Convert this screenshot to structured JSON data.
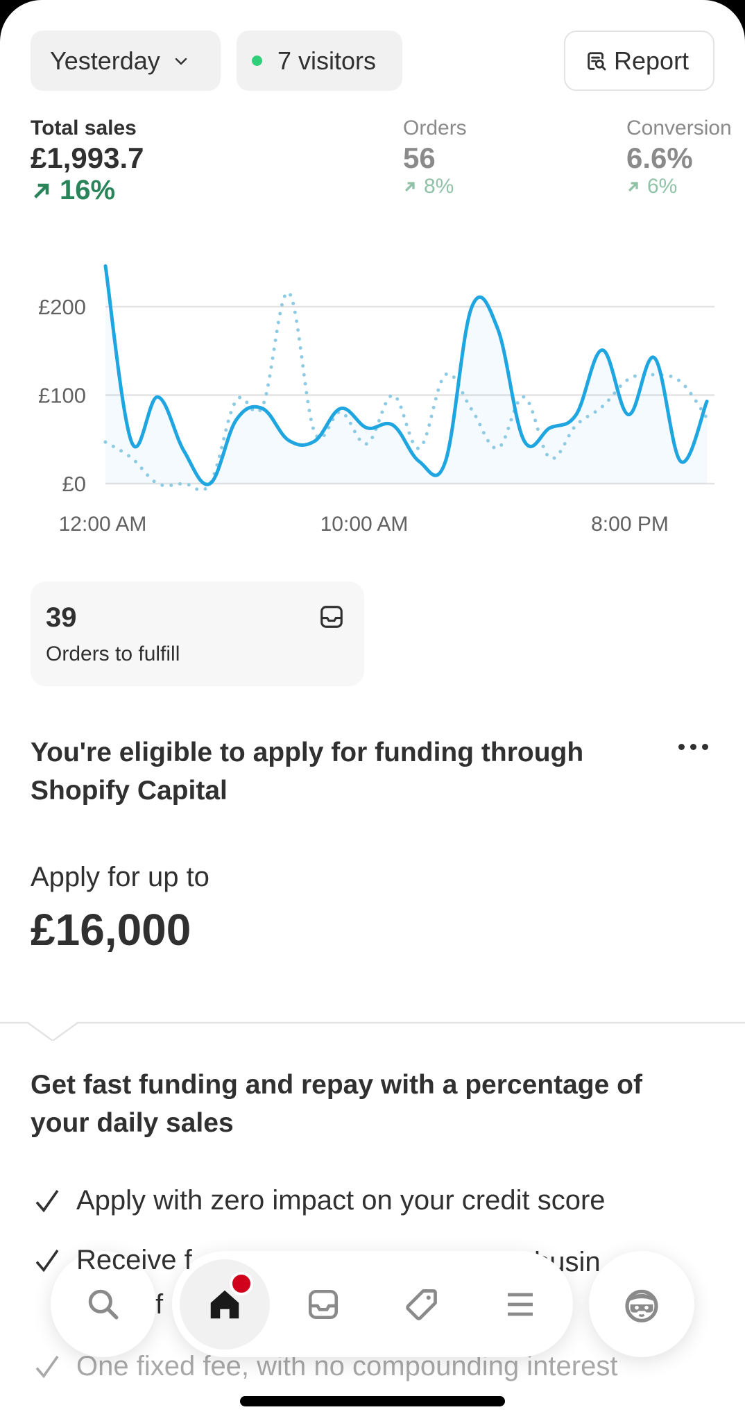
{
  "header": {
    "date_filter": "Yesterday",
    "visitors": "7 visitors",
    "visitors_dot_color": "#2fd07a",
    "report_label": "Report"
  },
  "metrics": [
    {
      "label": "Total sales",
      "value": "£1,993.7",
      "delta": "16%",
      "trend": "up"
    },
    {
      "label": "Orders",
      "value": "56",
      "delta": "8%",
      "trend": "up"
    },
    {
      "label": "Conversion",
      "value": "6.6%",
      "delta": "6%",
      "trend": "up"
    }
  ],
  "chart_data": {
    "type": "line",
    "x": [
      0,
      1,
      2,
      3,
      4,
      5,
      6,
      7,
      8,
      9,
      10,
      11,
      12,
      13,
      14,
      15,
      16,
      17,
      18,
      19,
      20,
      21,
      22,
      23
    ],
    "x_tick_labels": [
      "12:00 AM",
      "10:00 AM",
      "8:00 PM"
    ],
    "x_tick_values": [
      0,
      10,
      20
    ],
    "y_tick_labels": [
      "£0",
      "£100",
      "£200"
    ],
    "y_tick_values": [
      0,
      100,
      200
    ],
    "ylim": [
      0,
      250
    ],
    "grid": true,
    "series": [
      {
        "style": "solid",
        "color": "#1fa6e0",
        "values": [
          246,
          47,
          98,
          37,
          0,
          72,
          85,
          49,
          48,
          85,
          63,
          66,
          25,
          25,
          199,
          175,
          49,
          63,
          78,
          151,
          78,
          142,
          25,
          93
        ]
      },
      {
        "style": "dotted",
        "color": "#8ccbe3",
        "values": [
          47,
          29,
          0,
          0,
          0,
          94,
          87,
          216,
          58,
          81,
          45,
          100,
          40,
          123,
          84,
          40,
          98,
          29,
          66,
          87,
          118,
          123,
          115,
          74
        ]
      }
    ]
  },
  "fulfill_card": {
    "count": "39",
    "label": "Orders to fulfill"
  },
  "capital": {
    "heading_line1": "You're eligible to apply for funding through",
    "heading_line2": "Shopify Capital",
    "apply_label": "Apply for up to",
    "amount": "£16,000",
    "subheading_line1": "Get fast funding and repay with a percentage of",
    "subheading_line2": "your daily sales",
    "benefits": [
      "Apply with zero impact on your credit score",
      "Receive f",
      "busin",
      "f",
      "One fixed fee, with no compounding interest"
    ]
  },
  "nav": {
    "items": [
      "search",
      "home",
      "orders",
      "products",
      "menu",
      "account"
    ],
    "active": "home",
    "badge_color": "#d0021b"
  }
}
